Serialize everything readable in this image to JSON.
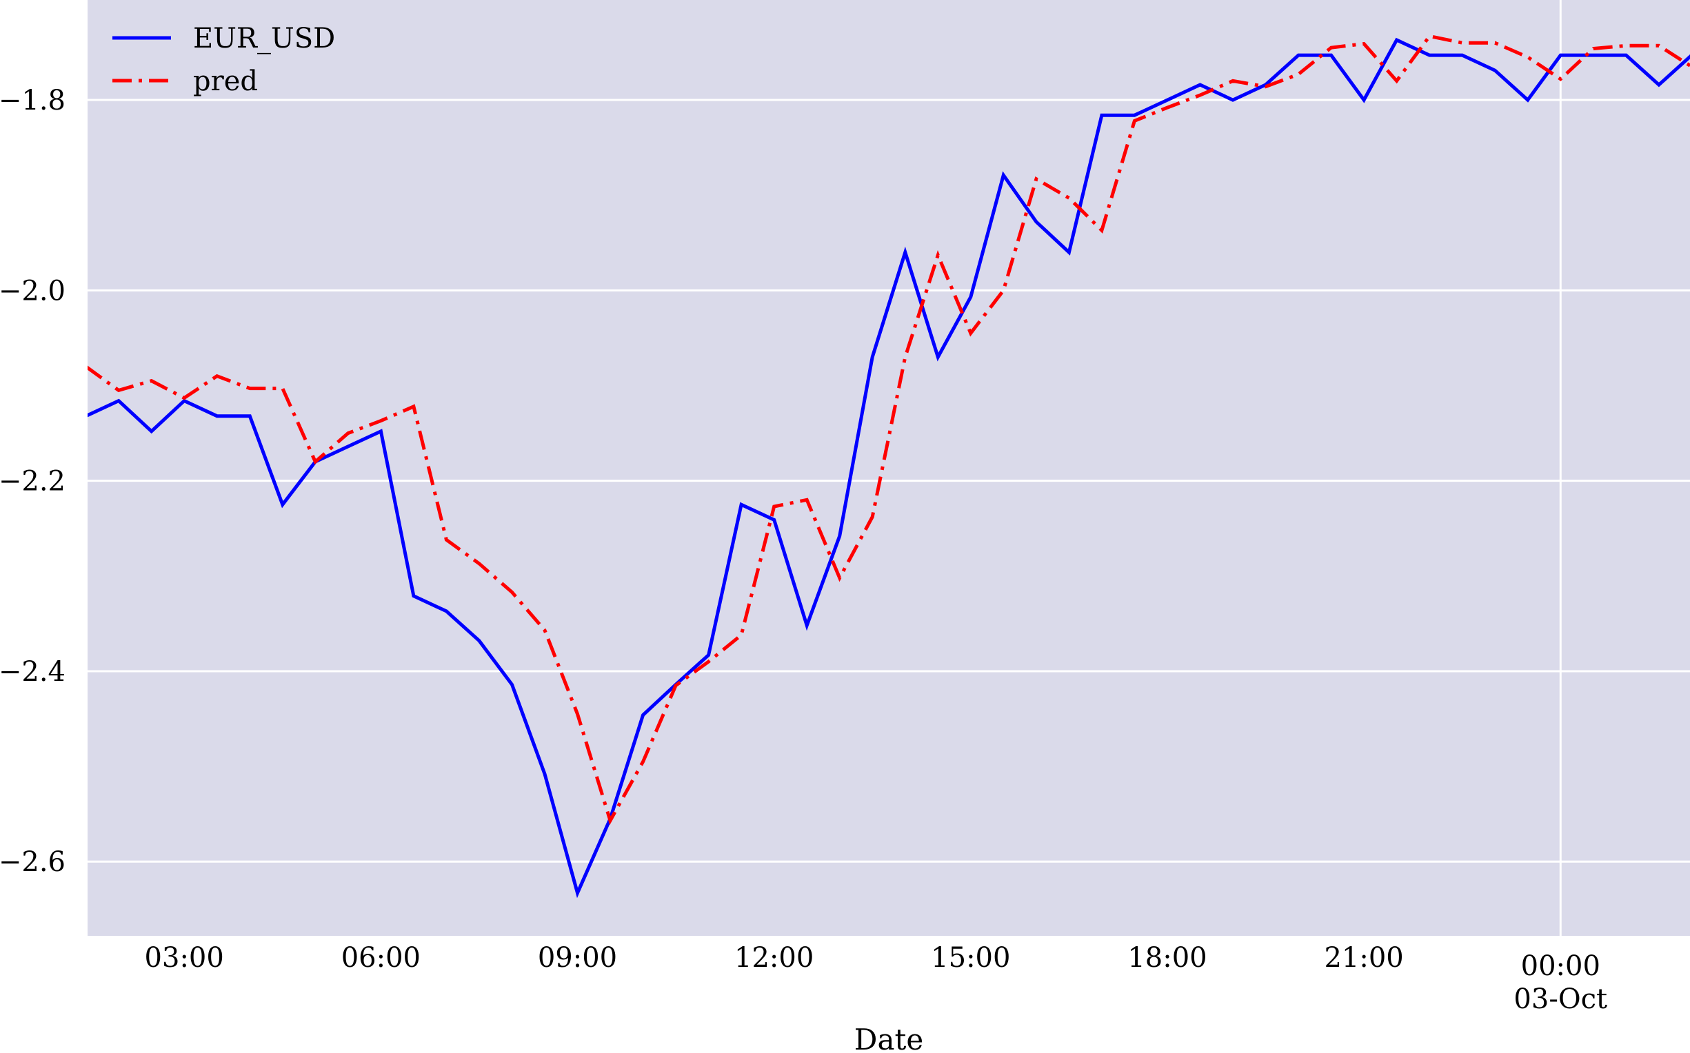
{
  "chart_data": {
    "type": "line",
    "xlabel": "Date",
    "ylabel": "",
    "ylim": [
      -2.678,
      -1.695
    ],
    "grid": true,
    "legend_position": "top-left",
    "x_ticks": [
      {
        "label": "03:00",
        "sub": "",
        "hour": 3
      },
      {
        "label": "06:00",
        "sub": "",
        "hour": 6
      },
      {
        "label": "09:00",
        "sub": "",
        "hour": 9
      },
      {
        "label": "12:00",
        "sub": "",
        "hour": 12
      },
      {
        "label": "15:00",
        "sub": "",
        "hour": 15
      },
      {
        "label": "18:00",
        "sub": "",
        "hour": 18
      },
      {
        "label": "21:00",
        "sub": "",
        "hour": 21
      },
      {
        "label": "00:00",
        "sub": "03-Oct",
        "hour": 24
      }
    ],
    "y_ticks": [
      "-2.6",
      "-2.4",
      "-2.2",
      "-2.0",
      "-1.8"
    ],
    "x_range_hours": [
      1.525,
      25.975
    ],
    "x_hours": [
      1.5,
      2.0,
      2.5,
      3.0,
      3.5,
      4.0,
      4.5,
      5.0,
      5.5,
      6.0,
      6.5,
      7.0,
      7.5,
      8.0,
      8.5,
      9.0,
      9.5,
      10.0,
      10.5,
      11.0,
      11.5,
      12.0,
      12.5,
      13.0,
      13.5,
      14.0,
      14.5,
      15.0,
      15.5,
      16.0,
      16.5,
      17.0,
      17.5,
      18.0,
      18.5,
      19.0,
      19.5,
      20.0,
      20.5,
      21.0,
      21.5,
      22.0,
      22.5,
      23.0,
      23.5,
      24.0,
      24.5,
      25.0,
      25.5,
      26.0
    ],
    "series": [
      {
        "name": "EUR_USD",
        "color": "#0000ff",
        "style": "solid",
        "values": [
          -2.132,
          -2.116,
          -2.148,
          -2.116,
          -2.132,
          -2.132,
          -2.225,
          -2.18,
          -2.164,
          -2.148,
          -2.321,
          -2.337,
          -2.368,
          -2.414,
          -2.508,
          -2.633,
          -2.555,
          -2.446,
          -2.414,
          -2.383,
          -2.225,
          -2.241,
          -2.352,
          -2.258,
          -2.07,
          -1.96,
          -2.07,
          -2.007,
          -1.879,
          -1.928,
          -1.96,
          -1.816,
          -1.816,
          -1.8,
          -1.784,
          -1.8,
          -1.784,
          -1.753,
          -1.753,
          -1.8,
          -1.737,
          -1.753,
          -1.753,
          -1.769,
          -1.8,
          -1.753,
          -1.753,
          -1.753,
          -1.784,
          -1.753
        ]
      },
      {
        "name": "pred",
        "color": "#ff0000",
        "style": "dashdot",
        "values": [
          -2.08,
          -2.105,
          -2.095,
          -2.113,
          -2.09,
          -2.103,
          -2.103,
          -2.18,
          -2.15,
          -2.137,
          -2.122,
          -2.262,
          -2.287,
          -2.317,
          -2.357,
          -2.445,
          -2.557,
          -2.495,
          -2.415,
          -2.39,
          -2.362,
          -2.227,
          -2.22,
          -2.302,
          -2.238,
          -2.07,
          -1.963,
          -2.045,
          -2.0,
          -1.883,
          -1.903,
          -1.937,
          -1.822,
          -1.808,
          -1.795,
          -1.78,
          -1.786,
          -1.773,
          -1.745,
          -1.741,
          -1.78,
          -1.733,
          -1.74,
          -1.74,
          -1.755,
          -1.778,
          -1.746,
          -1.743,
          -1.743,
          -1.765
        ]
      }
    ]
  }
}
